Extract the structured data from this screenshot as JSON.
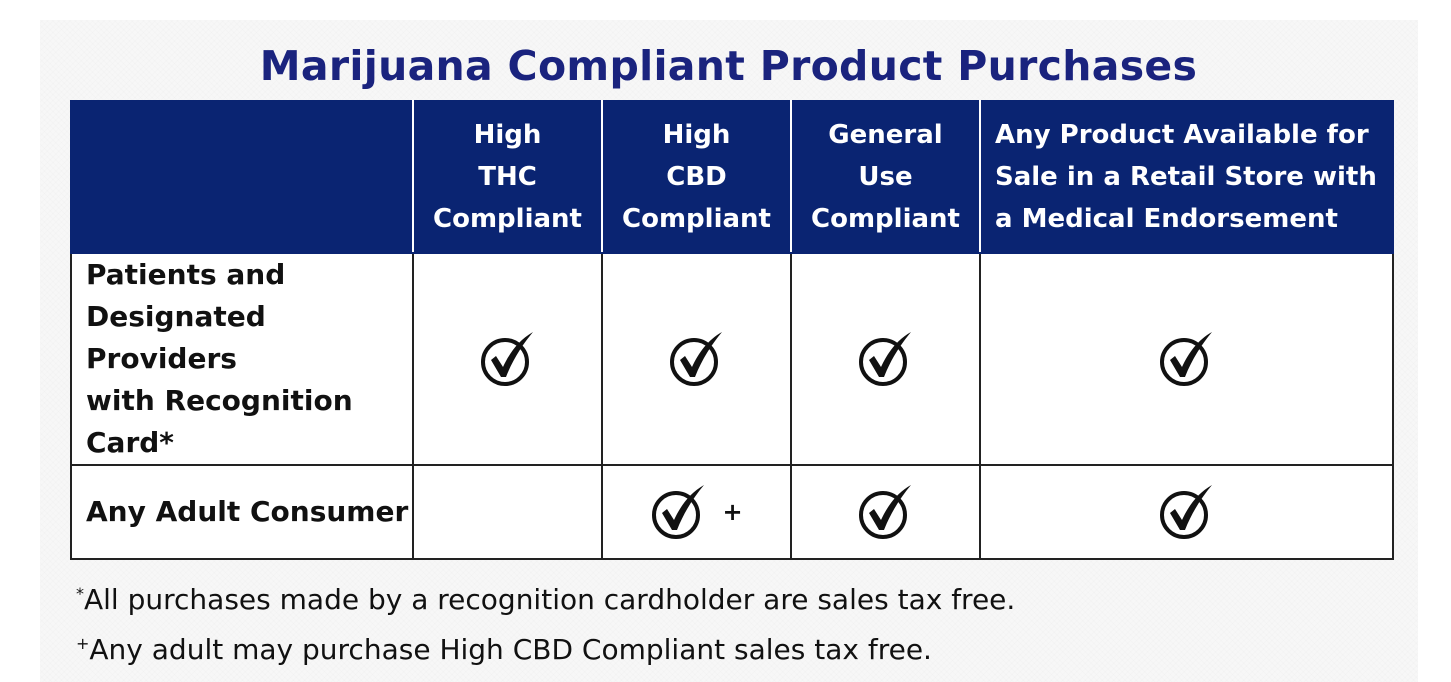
{
  "title": "Marijuana Compliant Product Purchases",
  "table": {
    "columns": [
      "",
      "High THC Compliant",
      "High CBD Compliant",
      "General Use Compliant",
      "Any Product Available for Sale in a Retail Store with a Medical Endorsement"
    ],
    "column_lines": [
      [],
      [
        "High",
        "THC",
        "Compliant"
      ],
      [
        "High",
        "CBD",
        "Compliant"
      ],
      [
        "General",
        "Use",
        "Compliant"
      ],
      [
        "Any Product Available for",
        "Sale in a Retail Store with",
        "a Medical Endorsement"
      ]
    ],
    "rows": [
      {
        "label": "Patients and Designated Providers with Recognition Card*",
        "label_lines": [
          "Patients and",
          "Designated Providers",
          "with Recognition",
          "Card*"
        ],
        "cells": [
          {
            "checked": true,
            "mark": ""
          },
          {
            "checked": true,
            "mark": ""
          },
          {
            "checked": true,
            "mark": ""
          },
          {
            "checked": true,
            "mark": ""
          }
        ]
      },
      {
        "label": "Any Adult Consumer",
        "label_lines": [
          "Any Adult Consumer"
        ],
        "cells": [
          {
            "checked": false,
            "mark": ""
          },
          {
            "checked": true,
            "mark": "+"
          },
          {
            "checked": true,
            "mark": ""
          },
          {
            "checked": true,
            "mark": ""
          }
        ]
      }
    ]
  },
  "footnotes": [
    {
      "mark": "*",
      "text": "All purchases made by a recognition cardholder are sales tax free."
    },
    {
      "mark": "+",
      "text": "Any adult may purchase High CBD Compliant sales tax free."
    }
  ],
  "icons": {
    "check": "check-circle-icon"
  },
  "colors": {
    "title": "#1a237e",
    "header_bg": "#0a2472",
    "header_text": "#ffffff",
    "border": "#222222"
  }
}
